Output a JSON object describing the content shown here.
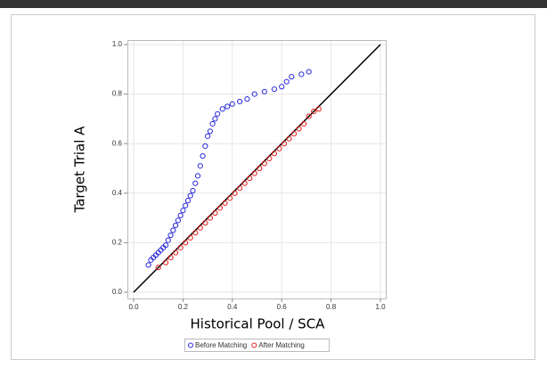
{
  "chart_data": {
    "type": "scatter",
    "xlabel": "Historical Pool / SCA",
    "ylabel": "Target Trial A",
    "xlim": [
      0,
      1
    ],
    "ylim": [
      0,
      1
    ],
    "xticks": [
      {
        "value": 0,
        "label": "0.0"
      },
      0.2,
      0.4,
      0.6,
      0.8,
      {
        "value": 1,
        "label": "1.0"
      }
    ],
    "yticks": [
      {
        "value": 0,
        "label": "0.0"
      },
      0.2,
      0.4,
      0.6,
      0.8,
      {
        "value": 1,
        "label": "1.0"
      }
    ],
    "grid": true,
    "legend": "bottom",
    "series": [
      {
        "name": "Before Matching",
        "color": "#2b2bd9",
        "x": [
          0.06,
          0.07,
          0.08,
          0.09,
          0.1,
          0.11,
          0.12,
          0.13,
          0.14,
          0.15,
          0.16,
          0.17,
          0.18,
          0.19,
          0.2,
          0.21,
          0.22,
          0.23,
          0.24,
          0.25,
          0.26,
          0.27,
          0.28,
          0.29,
          0.3,
          0.31,
          0.32,
          0.33,
          0.34,
          0.36,
          0.38,
          0.4,
          0.43,
          0.46,
          0.49,
          0.53,
          0.57,
          0.6,
          0.62,
          0.64,
          0.68,
          0.71
        ],
        "values": [
          0.11,
          0.13,
          0.14,
          0.15,
          0.16,
          0.17,
          0.18,
          0.19,
          0.21,
          0.23,
          0.25,
          0.27,
          0.29,
          0.31,
          0.33,
          0.35,
          0.37,
          0.39,
          0.41,
          0.44,
          0.47,
          0.51,
          0.55,
          0.59,
          0.63,
          0.65,
          0.68,
          0.7,
          0.72,
          0.74,
          0.75,
          0.76,
          0.77,
          0.78,
          0.8,
          0.81,
          0.82,
          0.83,
          0.85,
          0.87,
          0.88,
          0.89
        ]
      },
      {
        "name": "After Matching",
        "color": "#e02020",
        "x": [
          0.1,
          0.13,
          0.15,
          0.17,
          0.19,
          0.21,
          0.23,
          0.25,
          0.27,
          0.29,
          0.31,
          0.33,
          0.35,
          0.37,
          0.39,
          0.41,
          0.43,
          0.45,
          0.47,
          0.49,
          0.51,
          0.53,
          0.55,
          0.57,
          0.59,
          0.61,
          0.63,
          0.65,
          0.67,
          0.69,
          0.71,
          0.73,
          0.75
        ],
        "values": [
          0.1,
          0.12,
          0.14,
          0.16,
          0.18,
          0.2,
          0.22,
          0.24,
          0.26,
          0.28,
          0.3,
          0.32,
          0.34,
          0.36,
          0.38,
          0.4,
          0.42,
          0.44,
          0.46,
          0.48,
          0.5,
          0.52,
          0.54,
          0.56,
          0.58,
          0.6,
          0.62,
          0.64,
          0.66,
          0.68,
          0.71,
          0.73,
          0.74
        ]
      }
    ]
  }
}
